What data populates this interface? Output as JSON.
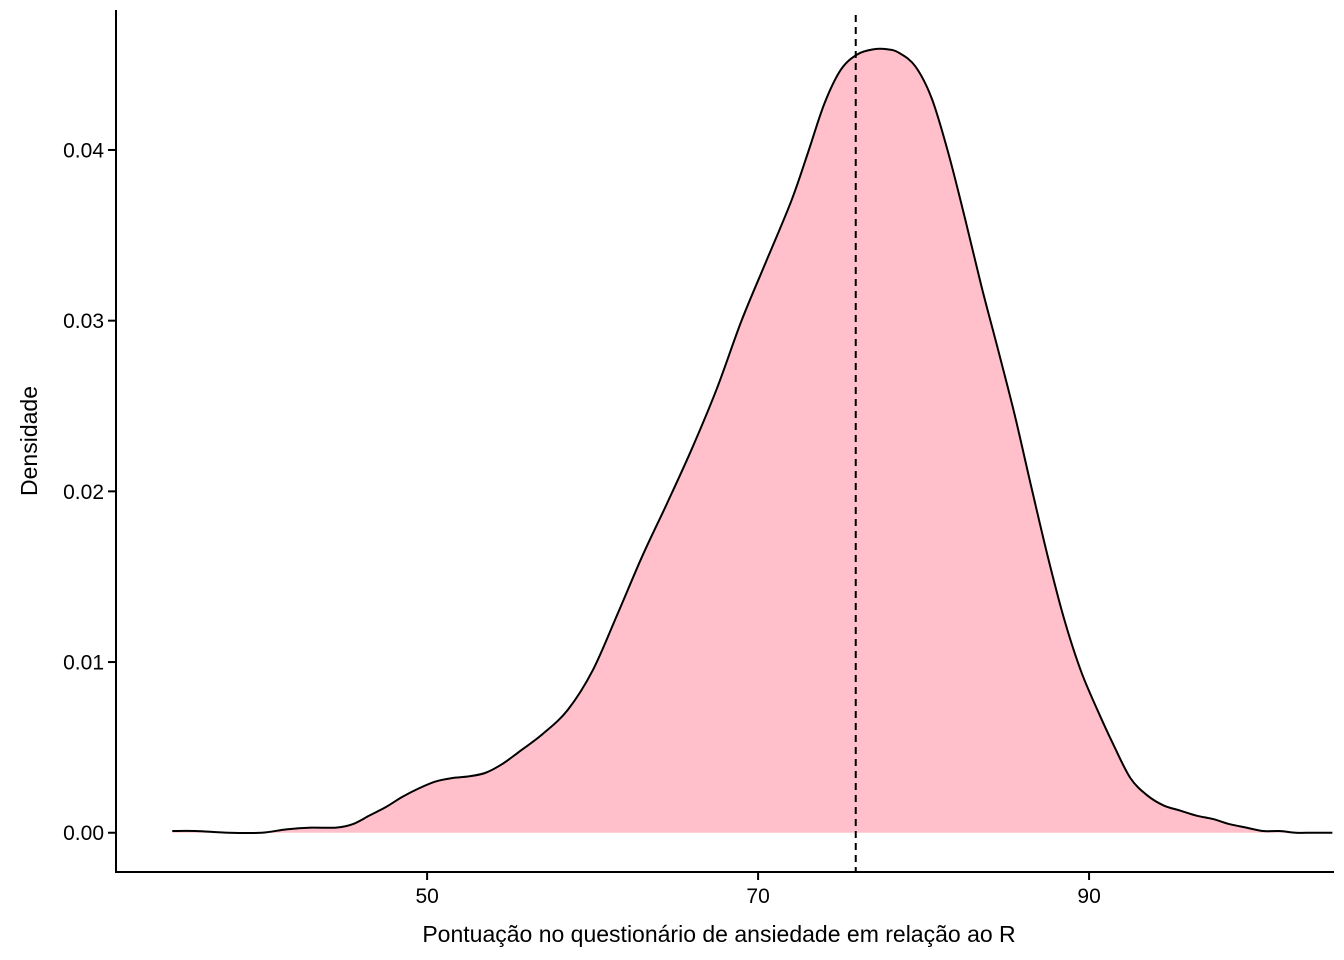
{
  "chart_data": {
    "type": "area",
    "subtype": "density",
    "title": "",
    "xlabel": "Pontuação no questionário de ansiedade em relação ao R",
    "ylabel": "Densidade",
    "xlim": [
      31.2,
      104.8
    ],
    "ylim": [
      -0.0023,
      0.0482
    ],
    "x_ticks": [
      {
        "value": 50,
        "label": "50"
      },
      {
        "value": 70,
        "label": "70"
      },
      {
        "value": 90,
        "label": "90"
      }
    ],
    "y_ticks": [
      {
        "value": 0.0,
        "label": "0.00"
      },
      {
        "value": 0.01,
        "label": "0.01"
      },
      {
        "value": 0.02,
        "label": "0.02"
      },
      {
        "value": 0.03,
        "label": "0.03"
      },
      {
        "value": 0.04,
        "label": "0.04"
      }
    ],
    "grid": false,
    "legend": "none",
    "fill_color": "#FFC0CB",
    "line_color": "#000000",
    "reference_line": {
      "x": 75.9,
      "style": "dashed",
      "color": "#000000"
    },
    "series": [
      {
        "x": [
          34.6,
          36,
          38,
          40,
          41.5,
          43,
          44.5,
          45.5,
          46.5,
          47.5,
          48.5,
          49.5,
          50.5,
          51.5,
          52.5,
          53.5,
          54.5,
          55.5,
          57,
          58.5,
          60,
          61.5,
          63,
          64.5,
          66,
          67.5,
          69,
          70.5,
          72,
          73,
          74,
          75,
          76,
          77,
          77.8,
          78.5,
          79.5,
          80.5,
          81.5,
          82.5,
          83.5,
          84.5,
          85.5,
          86.5,
          87.5,
          88.5,
          89.5,
          90.5,
          91.5,
          92.5,
          93.5,
          94.5,
          95.5,
          96.5,
          97.5,
          98.5,
          99.5,
          100.5,
          101.5,
          102.5,
          103.5,
          104.7
        ],
        "y": [
          0.0001,
          0.0001,
          0.0,
          0.0,
          0.0002,
          0.0003,
          0.0003,
          0.0005,
          0.001,
          0.0015,
          0.0021,
          0.0026,
          0.003,
          0.0032,
          0.0033,
          0.0035,
          0.004,
          0.0047,
          0.0058,
          0.0072,
          0.0095,
          0.0128,
          0.0162,
          0.0193,
          0.0225,
          0.026,
          0.03,
          0.0335,
          0.037,
          0.0398,
          0.0427,
          0.0447,
          0.0456,
          0.0459,
          0.0459,
          0.0457,
          0.0449,
          0.043,
          0.0398,
          0.036,
          0.032,
          0.0283,
          0.0245,
          0.0203,
          0.0162,
          0.0125,
          0.0095,
          0.0072,
          0.0051,
          0.0032,
          0.0022,
          0.0016,
          0.0013,
          0.001,
          0.0008,
          0.0005,
          0.0003,
          0.0001,
          0.0001,
          0.0,
          0.0,
          0.0
        ]
      }
    ]
  }
}
